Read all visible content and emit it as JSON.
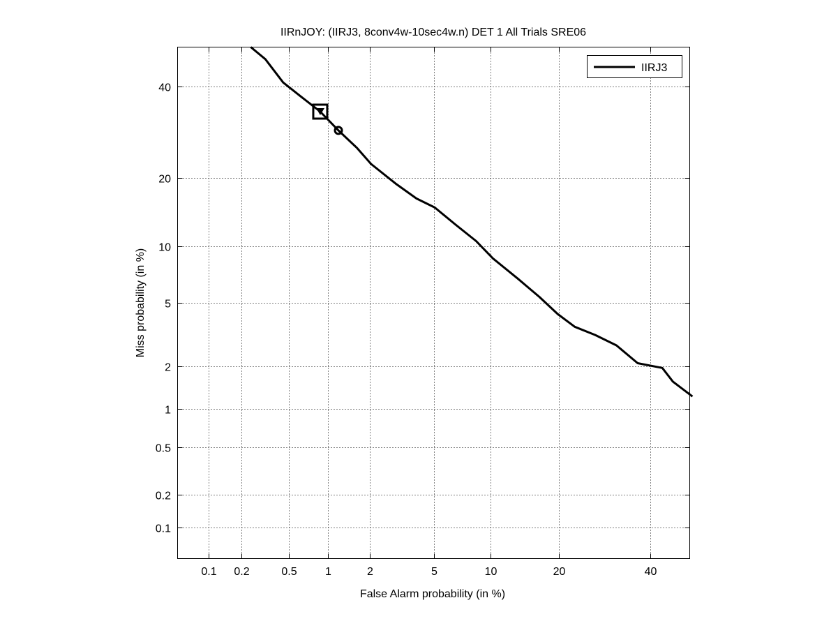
{
  "chart_data": {
    "type": "line",
    "title": "IIRnJOY: (IIRJ3, 8conv4w-10sec4w.n) DET 1 All Trials SRE06",
    "xlabel": "False Alarm probability (in %)",
    "ylabel": "Miss probability (in %)",
    "scale": "normal-deviate",
    "xlim": [
      0.05,
      50
    ],
    "ylim": [
      0.05,
      50
    ],
    "grid": true,
    "xticks": [
      0.1,
      0.2,
      0.5,
      1,
      2,
      5,
      10,
      20,
      40
    ],
    "xtick_labels": [
      "0.1",
      "0.2",
      "0.5",
      "1",
      "2",
      "5",
      "10",
      "20",
      "40"
    ],
    "yticks": [
      0.1,
      0.2,
      0.5,
      1,
      2,
      5,
      10,
      20,
      40
    ],
    "ytick_labels": [
      "0.1",
      "0.2",
      "0.5",
      "1",
      "2",
      "5",
      "10",
      "20",
      "40"
    ],
    "legend_position": "top-right",
    "series": [
      {
        "name": "IIRJ3",
        "color": "#000000",
        "x": [
          0.24,
          0.32,
          0.45,
          0.62,
          0.88,
          1.2,
          1.63,
          2.03,
          2.94,
          3.96,
          5.07,
          6.6,
          8.5,
          10.3,
          13.5,
          16.7,
          19.8,
          23,
          27.2,
          31.9,
          36.9,
          43,
          45.7,
          50.7
        ],
        "y": [
          50,
          46.9,
          41,
          37.6,
          33.9,
          29.6,
          25.8,
          22.6,
          19.0,
          16.5,
          15.1,
          12.7,
          10.6,
          8.7,
          6.8,
          5.4,
          4.3,
          3.6,
          3.2,
          2.75,
          2.1,
          1.95,
          1.57,
          1.23
        ]
      }
    ],
    "markers": [
      {
        "name": "actual-decision",
        "shape": "square-triangle",
        "x": 0.88,
        "y": 33.9
      },
      {
        "name": "min-dcf",
        "shape": "circle",
        "x": 1.2,
        "y": 29.6
      }
    ]
  }
}
